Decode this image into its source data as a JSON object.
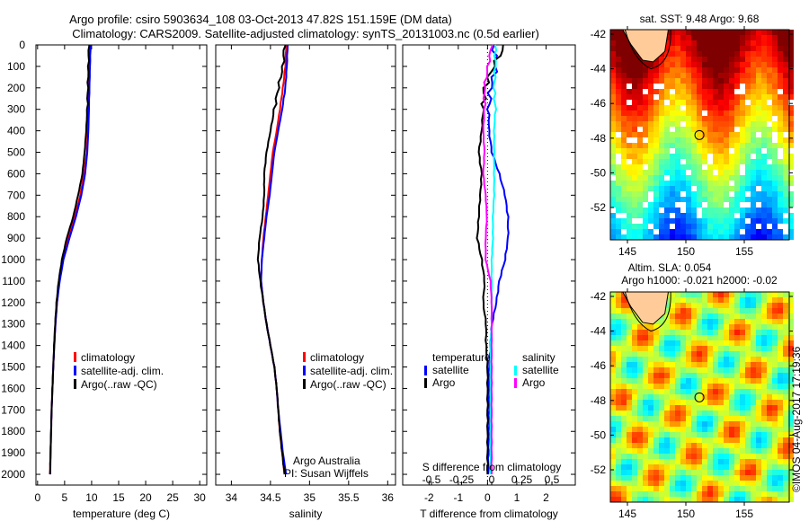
{
  "title": {
    "line1": "Argo profile: csiro 5903634_108 03-Oct-2013 47.82S 151.159E (DM data)",
    "line2": "Climatology: CARS2009. Satellite-adjusted climatology: synTS_20131003.nc (0.5d earlier)"
  },
  "colors": {
    "climatology": "#ff0000",
    "satellite": "#0000ff",
    "argo": "#000000",
    "sal_satellite": "#00ffff",
    "sal_argo": "#ff00ff"
  },
  "chart_data": [
    {
      "type": "line",
      "name": "temperature-profile",
      "xlabel": "temperature (deg C)",
      "ylabel": "",
      "xlim": [
        -0.3,
        31.3
      ],
      "ylim": [
        2050,
        0
      ],
      "xticks": [
        "0",
        "5",
        "10",
        "15",
        "20",
        "25",
        "30"
      ],
      "yticks": [
        "0",
        "100",
        "200",
        "300",
        "400",
        "500",
        "600",
        "700",
        "800",
        "900",
        "1000",
        "1100",
        "1200",
        "1300",
        "1400",
        "1500",
        "1600",
        "1700",
        "1800",
        "1900",
        "2000"
      ],
      "depth": [
        0,
        100,
        200,
        300,
        400,
        500,
        600,
        700,
        800,
        900,
        1000,
        1100,
        1200,
        1300,
        1400,
        1500,
        1600,
        1700,
        1800,
        1900,
        2000
      ],
      "series": [
        {
          "name": "climatology",
          "values": [
            9.7,
            9.6,
            9.5,
            9.4,
            9.3,
            9.1,
            8.6,
            7.9,
            6.9,
            5.7,
            4.7,
            4.0,
            3.6,
            3.3,
            3.1,
            2.9,
            2.75,
            2.6,
            2.5,
            2.4,
            2.3
          ]
        },
        {
          "name": "satellite-adj. clim.",
          "values": [
            9.8,
            9.7,
            9.6,
            9.5,
            9.4,
            9.2,
            8.8,
            8.1,
            7.1,
            5.9,
            4.8,
            4.1,
            3.6,
            3.3,
            3.1,
            2.9,
            2.75,
            2.6,
            2.5,
            2.4,
            2.35
          ]
        },
        {
          "name": "Argo(..raw -QC)",
          "values": [
            9.5,
            9.4,
            9.3,
            9.2,
            9.0,
            8.7,
            8.3,
            7.5,
            6.6,
            5.4,
            4.5,
            3.9,
            3.5,
            3.25,
            3.05,
            2.9,
            2.75,
            2.6,
            2.5,
            2.4,
            2.3
          ]
        }
      ],
      "legend": [
        "climatology",
        "satellite-adj. clim.",
        "Argo(..raw -QC)"
      ]
    },
    {
      "type": "line",
      "name": "salinity-profile",
      "xlabel": "salinity",
      "xlim": [
        33.8,
        36.1
      ],
      "ylim": [
        2050,
        0
      ],
      "xticks": [
        "34",
        "34.5",
        "35",
        "35.5",
        "36"
      ],
      "depth": [
        0,
        100,
        200,
        300,
        400,
        500,
        600,
        700,
        800,
        900,
        1000,
        1100,
        1200,
        1300,
        1400,
        1500,
        1600,
        1700,
        1800,
        1900,
        2000
      ],
      "series": [
        {
          "name": "climatology",
          "values": [
            34.7,
            34.69,
            34.66,
            34.62,
            34.58,
            34.53,
            34.5,
            34.47,
            34.44,
            34.41,
            34.39,
            34.38,
            34.41,
            34.45,
            34.5,
            34.55,
            34.58,
            34.6,
            34.62,
            34.65,
            34.68
          ]
        },
        {
          "name": "satellite-adj. clim.",
          "values": [
            34.72,
            34.71,
            34.69,
            34.65,
            34.6,
            34.55,
            34.52,
            34.49,
            34.45,
            34.42,
            34.39,
            34.38,
            34.41,
            34.45,
            34.5,
            34.55,
            34.58,
            34.6,
            34.63,
            34.66,
            34.7
          ]
        },
        {
          "name": "Argo(..raw -QC)",
          "values": [
            34.68,
            34.66,
            34.6,
            34.55,
            34.5,
            34.45,
            34.42,
            34.42,
            34.4,
            34.36,
            34.34,
            34.37,
            34.41,
            34.45,
            34.5,
            34.55,
            34.58,
            34.6,
            34.62,
            34.65,
            34.68
          ]
        }
      ],
      "legend": [
        "climatology",
        "satellite-adj. clim.",
        "Argo(..raw -QC)"
      ],
      "annotation": [
        "Argo Australia",
        "PI: Susan Wijffels"
      ]
    },
    {
      "type": "line",
      "name": "difference-profile",
      "xlabel": "T difference from climatology",
      "xlabel_top": "S difference from climatology",
      "xlim": [
        -2.9,
        3.0
      ],
      "ylim": [
        2050,
        0
      ],
      "xticks": [
        "-2",
        "-1",
        "0",
        "1",
        "2"
      ],
      "xticks_top": [
        "-0.5",
        "-0.25",
        "0",
        "0.25",
        "0.5"
      ],
      "depth": [
        0,
        100,
        200,
        300,
        400,
        500,
        600,
        700,
        800,
        900,
        1000,
        1100,
        1200,
        1300,
        1400,
        1500,
        1600,
        1700,
        1800,
        1900,
        2000
      ],
      "series": [
        {
          "name": "temperature satellite",
          "axis": "T",
          "values": [
            0.2,
            0.3,
            0.1,
            0.05,
            0.05,
            0.15,
            0.4,
            0.6,
            0.7,
            0.7,
            0.6,
            0.4,
            0.3,
            0.15,
            0.1,
            0.05,
            0.05,
            0.05,
            0.05,
            0.03,
            0.02
          ]
        },
        {
          "name": "temperature Argo",
          "axis": "T",
          "values": [
            0.6,
            0.2,
            -0.1,
            -0.15,
            -0.2,
            -0.3,
            -0.2,
            -0.25,
            -0.3,
            -0.35,
            -0.2,
            -0.1,
            -0.15,
            -0.05,
            -0.05,
            0.0,
            0.0,
            0.0,
            0.0,
            0.0,
            0.0
          ]
        },
        {
          "name": "salinity satellite",
          "axis": "S",
          "values": [
            0.03,
            0.03,
            0.02,
            0.03,
            0.02,
            0.02,
            0.02,
            0.02,
            0.01,
            0.01,
            0.0,
            0.0,
            0.0,
            0.0,
            -0.01,
            -0.01,
            -0.01,
            -0.01,
            -0.01,
            -0.01,
            -0.01
          ]
        },
        {
          "name": "salinity Argo",
          "axis": "S",
          "values": [
            0.0,
            -0.03,
            -0.06,
            -0.06,
            -0.07,
            -0.06,
            -0.07,
            -0.05,
            -0.04,
            -0.05,
            -0.05,
            -0.01,
            0.0,
            0.0,
            0.0,
            0.0,
            0.0,
            0.0,
            0.0,
            0.0,
            0.0
          ]
        }
      ],
      "legend": {
        "temperature_title": "temperature",
        "salinity_title": "salinity",
        "satellite": "satellite",
        "argo": "Argo"
      }
    }
  ],
  "maps": {
    "sst": {
      "title": "sat. SST: 9.48 Argo: 9.68",
      "lat_ticks": [
        "-42",
        "-44",
        "-46",
        "-48",
        "-50",
        "-52"
      ],
      "lon_ticks": [
        "145",
        "150",
        "155"
      ]
    },
    "sla": {
      "title1": "Altim. SLA: 0.054",
      "title2": "Argo h1000: -0.021 h2000: -0.02",
      "lat_ticks": [
        "-42",
        "-44",
        "-46",
        "-48",
        "-50",
        "-52"
      ],
      "lon_ticks": [
        "145",
        "150",
        "155"
      ]
    },
    "argo_position": {
      "lat": -47.82,
      "lon": 151.159
    }
  },
  "credit": "©IMOS 04-Aug-2017 17:19:36"
}
